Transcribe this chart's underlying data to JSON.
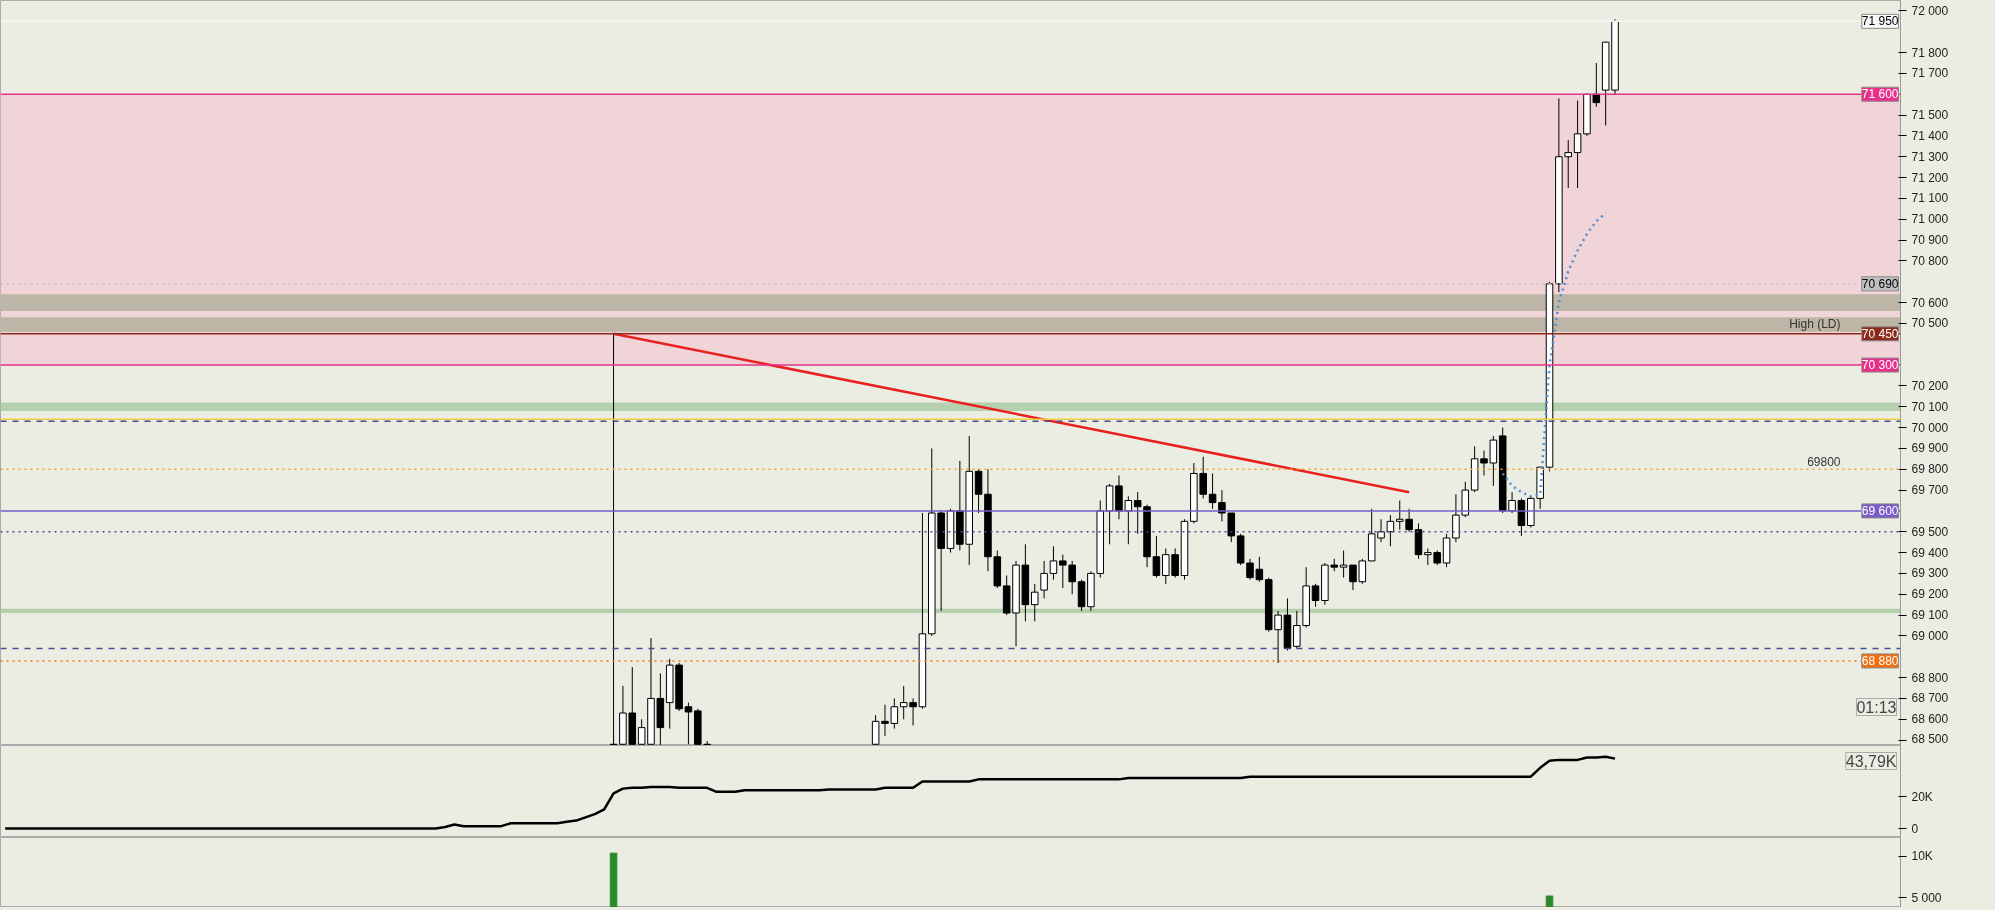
{
  "chart_data": [
    {
      "type": "candlestick",
      "tick_labels": "y",
      "categories": [
        null,
        null,
        null,
        null,
        null,
        null,
        null,
        null,
        null,
        null,
        null,
        null,
        null,
        null,
        null,
        null,
        null,
        null,
        null,
        null,
        null,
        null,
        null,
        null,
        null,
        null,
        null,
        null,
        null,
        null,
        null,
        null,
        null,
        null,
        null,
        null,
        null,
        null,
        null,
        null,
        null,
        null,
        null,
        null,
        null,
        null,
        null,
        null,
        null,
        null,
        null,
        null,
        null,
        null,
        null,
        null,
        null,
        null,
        null,
        null,
        null,
        null,
        null,
        null,
        null,
        null,
        null,
        null,
        null,
        null,
        null,
        null,
        null,
        null,
        null,
        null,
        null,
        null,
        null,
        null,
        null,
        null,
        null,
        null,
        null,
        null,
        null,
        null,
        null,
        null,
        null,
        null,
        null,
        null,
        null,
        null,
        null,
        null,
        null,
        null,
        null,
        null,
        null,
        null,
        null,
        null,
        null,
        null,
        null,
        null,
        null,
        null,
        null,
        null,
        null,
        null,
        null,
        null,
        null,
        null,
        null,
        null,
        null,
        null,
        null,
        null,
        null,
        null,
        null,
        null,
        null,
        null,
        null,
        null,
        null,
        null,
        null,
        null,
        null,
        null,
        null,
        null,
        null,
        null,
        null,
        null,
        null,
        null,
        null,
        null,
        null,
        null,
        null,
        null,
        null,
        null,
        null,
        null,
        null,
        null,
        null,
        null,
        null,
        null,
        null,
        null,
        null,
        null,
        null,
        null,
        null,
        null,
        null,
        null,
        null,
        null,
        null,
        null,
        null,
        null,
        null,
        null,
        null,
        null,
        null,
        null,
        null,
        null,
        null,
        null,
        null,
        null,
        null,
        null,
        null,
        null,
        null,
        null,
        null,
        null,
        null,
        null,
        null
      ],
      "ohlc": [
        null,
        null,
        null,
        null,
        null,
        null,
        null,
        null,
        null,
        null,
        null,
        null,
        null,
        null,
        null,
        null,
        null,
        null,
        null,
        null,
        null,
        null,
        null,
        null,
        null,
        null,
        null,
        null,
        null,
        null,
        null,
        null,
        null,
        null,
        null,
        null,
        null,
        null,
        null,
        null,
        null,
        null,
        null,
        null,
        null,
        null,
        null,
        null,
        null,
        null,
        null,
        null,
        null,
        null,
        null,
        null,
        null,
        null,
        null,
        null,
        null,
        null,
        null,
        null,
        null,
        [
          68480,
          70450,
          68475,
          68478
        ],
        [
          68480,
          68760,
          68475,
          68630
        ],
        [
          68630,
          68850,
          68475,
          68480
        ],
        [
          68480,
          68600,
          68475,
          68560
        ],
        [
          68480,
          68990,
          68475,
          68700
        ],
        [
          68700,
          68820,
          68475,
          68560
        ],
        [
          68680,
          68890,
          68555,
          68860
        ],
        [
          68860,
          68870,
          68640,
          68650
        ],
        [
          68660,
          68680,
          68480,
          68635
        ],
        [
          68640,
          68650,
          68475,
          68480
        ],
        [
          68480,
          68495,
          68475,
          68478
        ],
        null,
        null,
        null,
        null,
        null,
        null,
        null,
        null,
        null,
        null,
        null,
        null,
        null,
        null,
        null,
        null,
        null,
        [
          68480,
          68620,
          68475,
          68590
        ],
        [
          68590,
          68670,
          68520,
          68580
        ],
        [
          68580,
          68700,
          68555,
          68660
        ],
        [
          68660,
          68760,
          68600,
          68680
        ],
        [
          68680,
          68700,
          68570,
          68660
        ],
        [
          68660,
          69590,
          68650,
          69010
        ],
        [
          69010,
          69900,
          69000,
          69590
        ],
        [
          69590,
          69600,
          69120,
          69420
        ],
        [
          69420,
          69610,
          69400,
          69600
        ],
        [
          69600,
          69840,
          69410,
          69440
        ],
        [
          69440,
          69960,
          69340,
          69790
        ],
        [
          69790,
          69800,
          69590,
          69680
        ],
        [
          69680,
          69800,
          69310,
          69380
        ],
        [
          69380,
          69410,
          69230,
          69240
        ],
        [
          69240,
          69290,
          69100,
          69110
        ],
        [
          69110,
          69360,
          68950,
          69340
        ],
        [
          69340,
          69440,
          69070,
          69150
        ],
        [
          69150,
          69250,
          69070,
          69210
        ],
        [
          69220,
          69360,
          69180,
          69300
        ],
        [
          69300,
          69430,
          69270,
          69360
        ],
        [
          69360,
          69390,
          69230,
          69340
        ],
        [
          69340,
          69360,
          69200,
          69260
        ],
        [
          69260,
          69270,
          69120,
          69140
        ],
        [
          69140,
          69310,
          69120,
          69300
        ],
        [
          69300,
          69650,
          69280,
          69600
        ],
        [
          69600,
          69730,
          69440,
          69720
        ],
        [
          69720,
          69770,
          69560,
          69600
        ],
        [
          69600,
          69670,
          69440,
          69650
        ],
        [
          69650,
          69690,
          69490,
          69620
        ],
        [
          69620,
          69630,
          69330,
          69380
        ],
        [
          69380,
          69480,
          69280,
          69290
        ],
        [
          69290,
          69420,
          69250,
          69390
        ],
        [
          69390,
          69420,
          69280,
          69290
        ],
        [
          69290,
          69560,
          69270,
          69550
        ],
        [
          69550,
          69830,
          69540,
          69780
        ],
        [
          69780,
          69860,
          69660,
          69680
        ],
        [
          69680,
          69780,
          69610,
          69640
        ],
        [
          69640,
          69700,
          69550,
          69590
        ],
        [
          69590,
          69590,
          69450,
          69480
        ],
        [
          69480,
          69490,
          69340,
          69350
        ],
        [
          69350,
          69370,
          69270,
          69280
        ],
        [
          69320,
          69380,
          69260,
          69270
        ],
        [
          69270,
          69280,
          69020,
          69030
        ],
        [
          69030,
          69120,
          68870,
          69100
        ],
        [
          69100,
          69180,
          68930,
          68940
        ],
        [
          68950,
          69120,
          68940,
          69050
        ],
        [
          69050,
          69330,
          69040,
          69240
        ],
        [
          69240,
          69250,
          69140,
          69170
        ],
        [
          69170,
          69350,
          69150,
          69340
        ],
        [
          69340,
          69370,
          69310,
          69330
        ],
        [
          69330,
          69410,
          69280,
          69340
        ],
        [
          69340,
          69340,
          69220,
          69260
        ],
        [
          69260,
          69370,
          69250,
          69360
        ],
        [
          69360,
          69610,
          69360,
          69490
        ],
        [
          69470,
          69560,
          69450,
          69500
        ],
        [
          69500,
          69580,
          69430,
          69550
        ],
        [
          69550,
          69650,
          69510,
          69560
        ],
        [
          69560,
          69610,
          69500,
          69510
        ],
        [
          69510,
          69540,
          69370,
          69390
        ],
        [
          69390,
          69420,
          69340,
          69400
        ],
        [
          69400,
          69410,
          69340,
          69350
        ],
        [
          69350,
          69490,
          69330,
          69470
        ],
        [
          69470,
          69680,
          69450,
          69580
        ],
        [
          69580,
          69740,
          69570,
          69700
        ],
        [
          69700,
          69910,
          69690,
          69850
        ],
        [
          69850,
          69890,
          69770,
          69830
        ],
        [
          69830,
          69960,
          69720,
          69940
        ],
        [
          69960,
          70000,
          69590,
          69600
        ],
        [
          69600,
          69690,
          69590,
          69650
        ],
        [
          69650,
          69660,
          69480,
          69530
        ],
        [
          69530,
          69670,
          69520,
          69660
        ],
        [
          69660,
          69810,
          69610,
          69810
        ],
        [
          69810,
          70700,
          69790,
          70690
        ],
        [
          70690,
          71580,
          70650,
          71300
        ],
        [
          71300,
          71380,
          71150,
          71320
        ],
        [
          71320,
          71570,
          71150,
          71410
        ],
        [
          71410,
          71600,
          71400,
          71600
        ],
        [
          71600,
          71750,
          71540,
          71560
        ],
        [
          71620,
          71850,
          71450,
          71850
        ],
        [
          71620,
          71960,
          71600,
          71950
        ],
        null,
        null,
        null,
        null,
        null,
        null,
        null,
        null,
        null,
        null,
        null,
        null,
        null,
        null,
        null,
        null,
        null,
        null,
        null,
        null,
        null,
        null,
        null,
        null,
        null,
        null,
        null,
        null,
        null,
        null
      ],
      "series": [
        {
          "type": "line",
          "color": "#e8201e",
          "line_style": "solid",
          "values": [
            null,
            null,
            null,
            null,
            null,
            null,
            null,
            null,
            null,
            null,
            null,
            null,
            null,
            null,
            null,
            null,
            null,
            null,
            null,
            null,
            null,
            null,
            null,
            null,
            null,
            null,
            null,
            null,
            null,
            null,
            null,
            null,
            null,
            null,
            null,
            null,
            null,
            null,
            null,
            null,
            null,
            null,
            null,
            null,
            null,
            null,
            null,
            null,
            null,
            null,
            null,
            null,
            null,
            null,
            null,
            null,
            null,
            null,
            null,
            null,
            null,
            null,
            null,
            null,
            null,
            70450,
            null,
            null,
            null,
            null,
            null,
            null,
            null,
            null,
            null,
            null,
            null,
            null,
            null,
            null,
            null,
            null,
            null,
            null,
            null,
            null,
            null,
            null,
            null,
            null,
            null,
            null,
            null,
            null,
            null,
            null,
            null,
            null,
            null,
            null,
            null,
            null,
            null,
            null,
            null,
            null,
            null,
            null,
            null,
            null,
            null,
            null,
            null,
            null,
            null,
            null,
            null,
            null,
            null,
            null,
            null,
            null,
            null,
            null,
            null,
            null,
            null,
            null,
            null,
            null,
            null,
            null,
            null,
            null,
            null,
            null,
            null,
            null,
            null,
            null,
            null,
            null,
            null,
            null,
            null,
            null,
            null,
            null,
            null,
            null,
            69690,
            null,
            null,
            null,
            null,
            null,
            null,
            null,
            null,
            null,
            null,
            null,
            null,
            null,
            null,
            null,
            null,
            null,
            null,
            null,
            null,
            null,
            null,
            null,
            null,
            null,
            null,
            null,
            null,
            null,
            null,
            null,
            null,
            null,
            null,
            null,
            null,
            null,
            null,
            null,
            null,
            null,
            null,
            null,
            null,
            null,
            null,
            null,
            null,
            null,
            null,
            null,
            null
          ]
        },
        {
          "type": "line",
          "color": "#4a8fd8",
          "line_style": "dotted",
          "values": [
            null,
            null,
            null,
            null,
            null,
            null,
            null,
            null,
            null,
            null,
            null,
            null,
            null,
            null,
            null,
            null,
            null,
            null,
            null,
            null,
            null,
            null,
            null,
            null,
            null,
            null,
            null,
            null,
            null,
            null,
            null,
            null,
            null,
            null,
            null,
            null,
            null,
            null,
            null,
            null,
            null,
            null,
            null,
            null,
            null,
            null,
            null,
            null,
            null,
            null,
            null,
            null,
            null,
            null,
            null,
            null,
            null,
            null,
            null,
            null,
            null,
            null,
            null,
            null,
            null,
            null,
            null,
            null,
            null,
            null,
            null,
            null,
            null,
            null,
            null,
            null,
            null,
            null,
            null,
            null,
            null,
            null,
            null,
            null,
            null,
            null,
            null,
            null,
            null,
            null,
            null,
            null,
            null,
            null,
            null,
            null,
            null,
            null,
            null,
            null,
            null,
            null,
            null,
            null,
            null,
            null,
            null,
            null,
            null,
            null,
            null,
            null,
            null,
            null,
            null,
            null,
            null,
            null,
            null,
            null,
            null,
            null,
            null,
            null,
            null,
            null,
            null,
            null,
            null,
            null,
            null,
            null,
            null,
            null,
            null,
            null,
            null,
            null,
            null,
            null,
            null,
            null,
            null,
            null,
            null,
            null,
            null,
            null,
            null,
            null,
            null,
            null,
            null,
            null,
            null,
            null,
            null,
            null,
            null,
            null,
            69780,
            69720,
            69690,
            69670,
            69680,
            70300,
            70600,
            70750,
            70850,
            70930,
            70990,
            71030,
            null,
            null,
            null,
            null,
            null,
            null,
            null,
            null,
            null,
            null,
            null,
            null,
            null,
            null,
            null,
            null,
            null,
            null,
            null,
            null,
            null,
            null,
            null,
            null,
            null,
            null,
            null,
            null,
            null,
            null,
            null
          ]
        }
      ],
      "ylim": [
        68474,
        72050
      ],
      "yticks": [
        {
          "value": 68500,
          "label": "68 500"
        },
        {
          "value": 68600,
          "label": "68 600"
        },
        {
          "value": 68700,
          "label": "68 700"
        },
        {
          "value": 68800,
          "label": "68 800"
        },
        {
          "value": 69000,
          "label": "69 000"
        },
        {
          "value": 69100,
          "label": "69 100"
        },
        {
          "value": 69200,
          "label": "69 200"
        },
        {
          "value": 69300,
          "label": "69 300"
        },
        {
          "value": 69400,
          "label": "69 400"
        },
        {
          "value": 69500,
          "label": "69 500"
        },
        {
          "value": 69700,
          "label": "69 700"
        },
        {
          "value": 69800,
          "label": "69 800"
        },
        {
          "value": 69900,
          "label": "69 900"
        },
        {
          "value": 70000,
          "label": "70 000"
        },
        {
          "value": 70100,
          "label": "70 100"
        },
        {
          "value": 70200,
          "label": "70 200"
        },
        {
          "value": 70500,
          "label": "70 500"
        },
        {
          "value": 70600,
          "label": "70 600"
        },
        {
          "value": 70800,
          "label": "70 800"
        },
        {
          "value": 70900,
          "label": "70 900"
        },
        {
          "value": 71000,
          "label": "71 000"
        },
        {
          "value": 71100,
          "label": "71 100"
        },
        {
          "value": 71200,
          "label": "71 200"
        },
        {
          "value": 71300,
          "label": "71 300"
        },
        {
          "value": 71400,
          "label": "71 400"
        },
        {
          "value": 71500,
          "label": "71 500"
        },
        {
          "value": 71700,
          "label": "71 700"
        },
        {
          "value": 71800,
          "label": "71 800"
        },
        {
          "value": 72000,
          "label": "72 000"
        }
      ],
      "bands": [
        {
          "axis": "y",
          "from": 70300,
          "to": 71600,
          "color": "#f0d4d8"
        },
        {
          "axis": "y",
          "from": 70460,
          "to": 70530,
          "color": "#bdb5a5"
        },
        {
          "axis": "y",
          "from": 70560,
          "to": 70640,
          "color": "#bdb5a5"
        },
        {
          "axis": "y",
          "from": 70080,
          "to": 70120,
          "color": "#b5d0ad"
        },
        {
          "axis": "y",
          "from": 69110,
          "to": 69130,
          "color": "#b5d0ad"
        }
      ],
      "ref_lines": [
        {
          "axis": "y",
          "value": 71950,
          "label": "71 950",
          "color": "#f8f8f8",
          "line_style": "solid"
        },
        {
          "axis": "y",
          "value": 71600,
          "label": "71 600",
          "color": "#e8308a",
          "line_style": "solid"
        },
        {
          "axis": "y",
          "value": 70690,
          "label": "70 690",
          "color": "#c0c0c0",
          "line_style": "dotted"
        },
        {
          "axis": "y",
          "value": 70450,
          "label": "70 450",
          "color": "#8b2a1a",
          "line_style": "solid"
        },
        {
          "axis": "y",
          "value": 70300,
          "label": "70 300",
          "color": "#e8308a",
          "line_style": "solid"
        },
        {
          "axis": "y",
          "value": 70040,
          "color": "#f0d040",
          "line_style": "solid"
        },
        {
          "axis": "y",
          "value": 70030,
          "color": "#4a4a9a",
          "line_style": "dashed"
        },
        {
          "axis": "y",
          "value": 69800,
          "color": "#f0a020",
          "line_style": "dotted"
        },
        {
          "axis": "y",
          "value": 69600,
          "label": "69 600",
          "color": "#7a5cc8",
          "line_style": "solid"
        },
        {
          "axis": "y",
          "value": 69500,
          "color": "#4a4a9a",
          "line_style": "dotted"
        },
        {
          "axis": "y",
          "value": 68940,
          "color": "#4a4a9a",
          "line_style": "dashed"
        },
        {
          "axis": "y",
          "value": 68880,
          "label": "68 880",
          "color": "#f07010",
          "line_style": "dotted"
        }
      ],
      "annotations": [
        {
          "text": "High (LD)",
          "y": 70450
        },
        {
          "text": "69800",
          "y": 69800
        },
        "01:13"
      ]
    },
    {
      "type": "line",
      "tick_labels": "y",
      "categories": [
        null,
        null,
        null,
        null,
        null,
        null,
        null,
        null,
        null,
        null,
        null,
        null,
        null,
        null,
        null,
        null,
        null,
        null,
        null,
        null,
        null,
        null,
        null,
        null,
        null,
        null,
        null,
        null,
        null,
        null,
        null,
        null,
        null,
        null,
        null,
        null,
        null,
        null,
        null,
        null,
        null,
        null,
        null,
        null,
        null,
        null,
        null,
        null,
        null,
        null,
        null,
        null,
        null,
        null,
        null,
        null,
        null,
        null,
        null,
        null,
        null,
        null,
        null,
        null,
        null,
        null,
        null,
        null,
        null,
        null,
        null,
        null,
        null,
        null,
        null,
        null,
        null,
        null,
        null,
        null,
        null,
        null,
        null,
        null,
        null,
        null,
        null,
        null,
        null,
        null,
        null,
        null,
        null,
        null,
        null,
        null,
        null,
        null,
        null,
        null,
        null,
        null,
        null,
        null,
        null,
        null,
        null,
        null,
        null,
        null,
        null,
        null,
        null,
        null,
        null,
        null,
        null,
        null,
        null,
        null,
        null,
        null,
        null,
        null,
        null,
        null,
        null,
        null,
        null,
        null,
        null,
        null,
        null,
        null,
        null,
        null,
        null,
        null,
        null,
        null,
        null,
        null,
        null,
        null,
        null,
        null,
        null,
        null,
        null,
        null,
        null,
        null,
        null,
        null,
        null,
        null,
        null,
        null,
        null,
        null,
        null,
        null,
        null,
        null,
        null,
        null,
        null,
        null,
        null,
        null,
        null,
        null,
        null,
        null,
        null,
        null,
        null,
        null,
        null,
        null,
        null,
        null,
        null,
        null,
        null,
        null,
        null,
        null,
        null,
        null,
        null,
        null,
        null,
        null,
        null,
        null,
        null,
        null,
        null,
        null,
        null,
        null,
        null
      ],
      "series": [
        {
          "color": "#000000",
          "values": [
            0,
            0,
            0,
            0,
            0,
            0,
            0,
            0,
            0,
            0,
            0,
            0,
            0,
            0,
            0,
            0,
            0,
            0,
            0,
            0,
            0,
            0,
            0,
            0,
            0,
            0,
            0,
            0,
            0,
            0,
            0,
            0,
            0,
            0,
            0,
            0,
            0,
            0,
            0,
            0,
            0,
            0,
            0,
            0,
            0,
            0,
            0,
            1000,
            2500,
            1500,
            1500,
            1500,
            1500,
            1500,
            3300,
            3300,
            3300,
            3300,
            3300,
            3300,
            4200,
            5000,
            7000,
            9000,
            12000,
            22000,
            25000,
            25500,
            25500,
            26000,
            26000,
            26000,
            25500,
            25500,
            25500,
            25500,
            23000,
            23000,
            23000,
            24000,
            24000,
            24000,
            24000,
            24000,
            24000,
            24000,
            24000,
            24000,
            24500,
            24500,
            24500,
            24500,
            24500,
            24500,
            25500,
            25500,
            25500,
            25500,
            29500,
            29500,
            29500,
            29500,
            29500,
            29500,
            30800,
            30800,
            30800,
            30800,
            30800,
            30800,
            30800,
            30800,
            30800,
            30800,
            30800,
            30800,
            30800,
            30800,
            30800,
            30800,
            31700,
            31700,
            31700,
            31700,
            31700,
            31700,
            31700,
            31700,
            31700,
            31700,
            31700,
            31700,
            31700,
            32500,
            32500,
            32500,
            32500,
            32500,
            32500,
            32500,
            32500,
            32500,
            32500,
            32500,
            32500,
            32500,
            32500,
            32500,
            32500,
            32500,
            32500,
            32500,
            32500,
            32500,
            32500,
            32500,
            32500,
            32500,
            32500,
            32500,
            32500,
            32500,
            32500,
            32500,
            38000,
            42500,
            43000,
            43000,
            43000,
            44500,
            44500,
            45000,
            43790,
            null,
            null,
            null,
            null,
            null,
            null,
            null,
            null,
            null,
            null,
            null,
            null,
            null,
            null,
            null,
            null,
            null,
            null,
            null,
            null,
            null,
            null,
            null,
            null,
            null,
            null,
            null,
            null,
            null,
            null
          ]
        }
      ],
      "ylim": [
        -5600,
        52000
      ],
      "yticks": [
        0,
        {
          "value": 20000,
          "label": "20K"
        }
      ],
      "annotations": [
        "43,79K"
      ]
    },
    {
      "type": "bar",
      "tick_labels": "y",
      "categories": [
        null,
        null,
        null,
        null,
        null,
        null,
        null,
        null,
        null,
        null,
        null,
        null,
        null,
        null,
        null,
        null,
        null,
        null,
        null,
        null,
        null,
        null,
        null,
        null,
        null,
        null,
        null,
        null,
        null,
        null,
        null,
        null,
        null,
        null,
        null,
        null,
        null,
        null,
        null,
        null,
        null,
        null,
        null,
        null,
        null,
        null,
        null,
        null,
        null,
        null,
        null,
        null,
        null,
        null,
        null,
        null,
        null,
        null,
        null,
        null,
        null,
        null,
        null,
        null,
        null,
        null,
        null,
        null,
        null,
        null,
        null,
        null,
        null,
        null,
        null,
        null,
        null,
        null,
        null,
        null,
        null,
        null,
        null,
        null,
        null,
        null,
        null,
        null,
        null,
        null,
        null,
        null,
        null,
        null,
        null,
        null,
        null,
        null,
        null,
        null,
        null,
        null,
        null,
        null,
        null,
        null,
        null,
        null,
        null,
        null,
        null,
        null,
        null,
        null,
        null,
        null,
        null,
        null,
        null,
        null,
        null,
        null,
        null,
        null,
        null,
        null,
        null,
        null,
        null,
        null,
        null,
        null,
        null,
        null,
        null,
        null,
        null,
        null,
        null,
        null,
        null,
        null,
        null,
        null,
        null,
        null,
        null,
        null,
        null,
        null,
        null,
        null,
        null,
        null,
        null,
        null,
        null,
        null,
        null,
        null,
        null,
        null,
        null,
        null,
        null,
        null,
        null,
        null,
        null,
        null,
        null,
        null,
        null,
        null,
        null,
        null,
        null,
        null,
        null,
        null,
        null,
        null,
        null,
        null,
        null,
        null,
        null,
        null,
        null,
        null,
        null,
        null,
        null,
        null,
        null,
        null,
        null,
        null,
        null,
        null,
        null,
        null,
        null
      ],
      "color": "#2a8a2a",
      "values": [
        null,
        null,
        null,
        null,
        null,
        null,
        null,
        null,
        null,
        null,
        null,
        null,
        null,
        null,
        null,
        null,
        null,
        null,
        null,
        null,
        null,
        null,
        null,
        null,
        null,
        null,
        null,
        null,
        null,
        null,
        null,
        null,
        null,
        null,
        null,
        null,
        null,
        null,
        null,
        null,
        null,
        null,
        null,
        null,
        null,
        null,
        null,
        null,
        null,
        null,
        null,
        null,
        null,
        null,
        null,
        null,
        null,
        null,
        null,
        null,
        null,
        null,
        null,
        null,
        null,
        10400,
        null,
        null,
        null,
        null,
        null,
        null,
        null,
        null,
        null,
        null,
        null,
        null,
        null,
        null,
        null,
        null,
        null,
        null,
        null,
        null,
        null,
        null,
        null,
        null,
        null,
        null,
        null,
        null,
        null,
        null,
        null,
        null,
        null,
        null,
        null,
        null,
        null,
        null,
        null,
        null,
        null,
        null,
        null,
        null,
        null,
        null,
        null,
        null,
        null,
        null,
        null,
        null,
        null,
        null,
        null,
        null,
        null,
        null,
        null,
        null,
        null,
        null,
        null,
        null,
        null,
        null,
        null,
        null,
        null,
        null,
        null,
        null,
        null,
        null,
        null,
        null,
        null,
        null,
        null,
        null,
        null,
        null,
        null,
        null,
        null,
        null,
        null,
        null,
        null,
        null,
        null,
        null,
        null,
        null,
        null,
        null,
        null,
        null,
        null,
        5200,
        null,
        null,
        null,
        null,
        null,
        null,
        null,
        null,
        null,
        null,
        null,
        null,
        null,
        null,
        null,
        null,
        null,
        null,
        null,
        null,
        null,
        null,
        null,
        null,
        null,
        null,
        null,
        null,
        null,
        null,
        null,
        null,
        null,
        null,
        null,
        null,
        null
      ],
      "ylim": [
        3800,
        12300
      ],
      "yticks": [
        {
          "value": 5000,
          "label": "5 000"
        },
        {
          "value": 10000,
          "label": "10K"
        }
      ]
    }
  ]
}
